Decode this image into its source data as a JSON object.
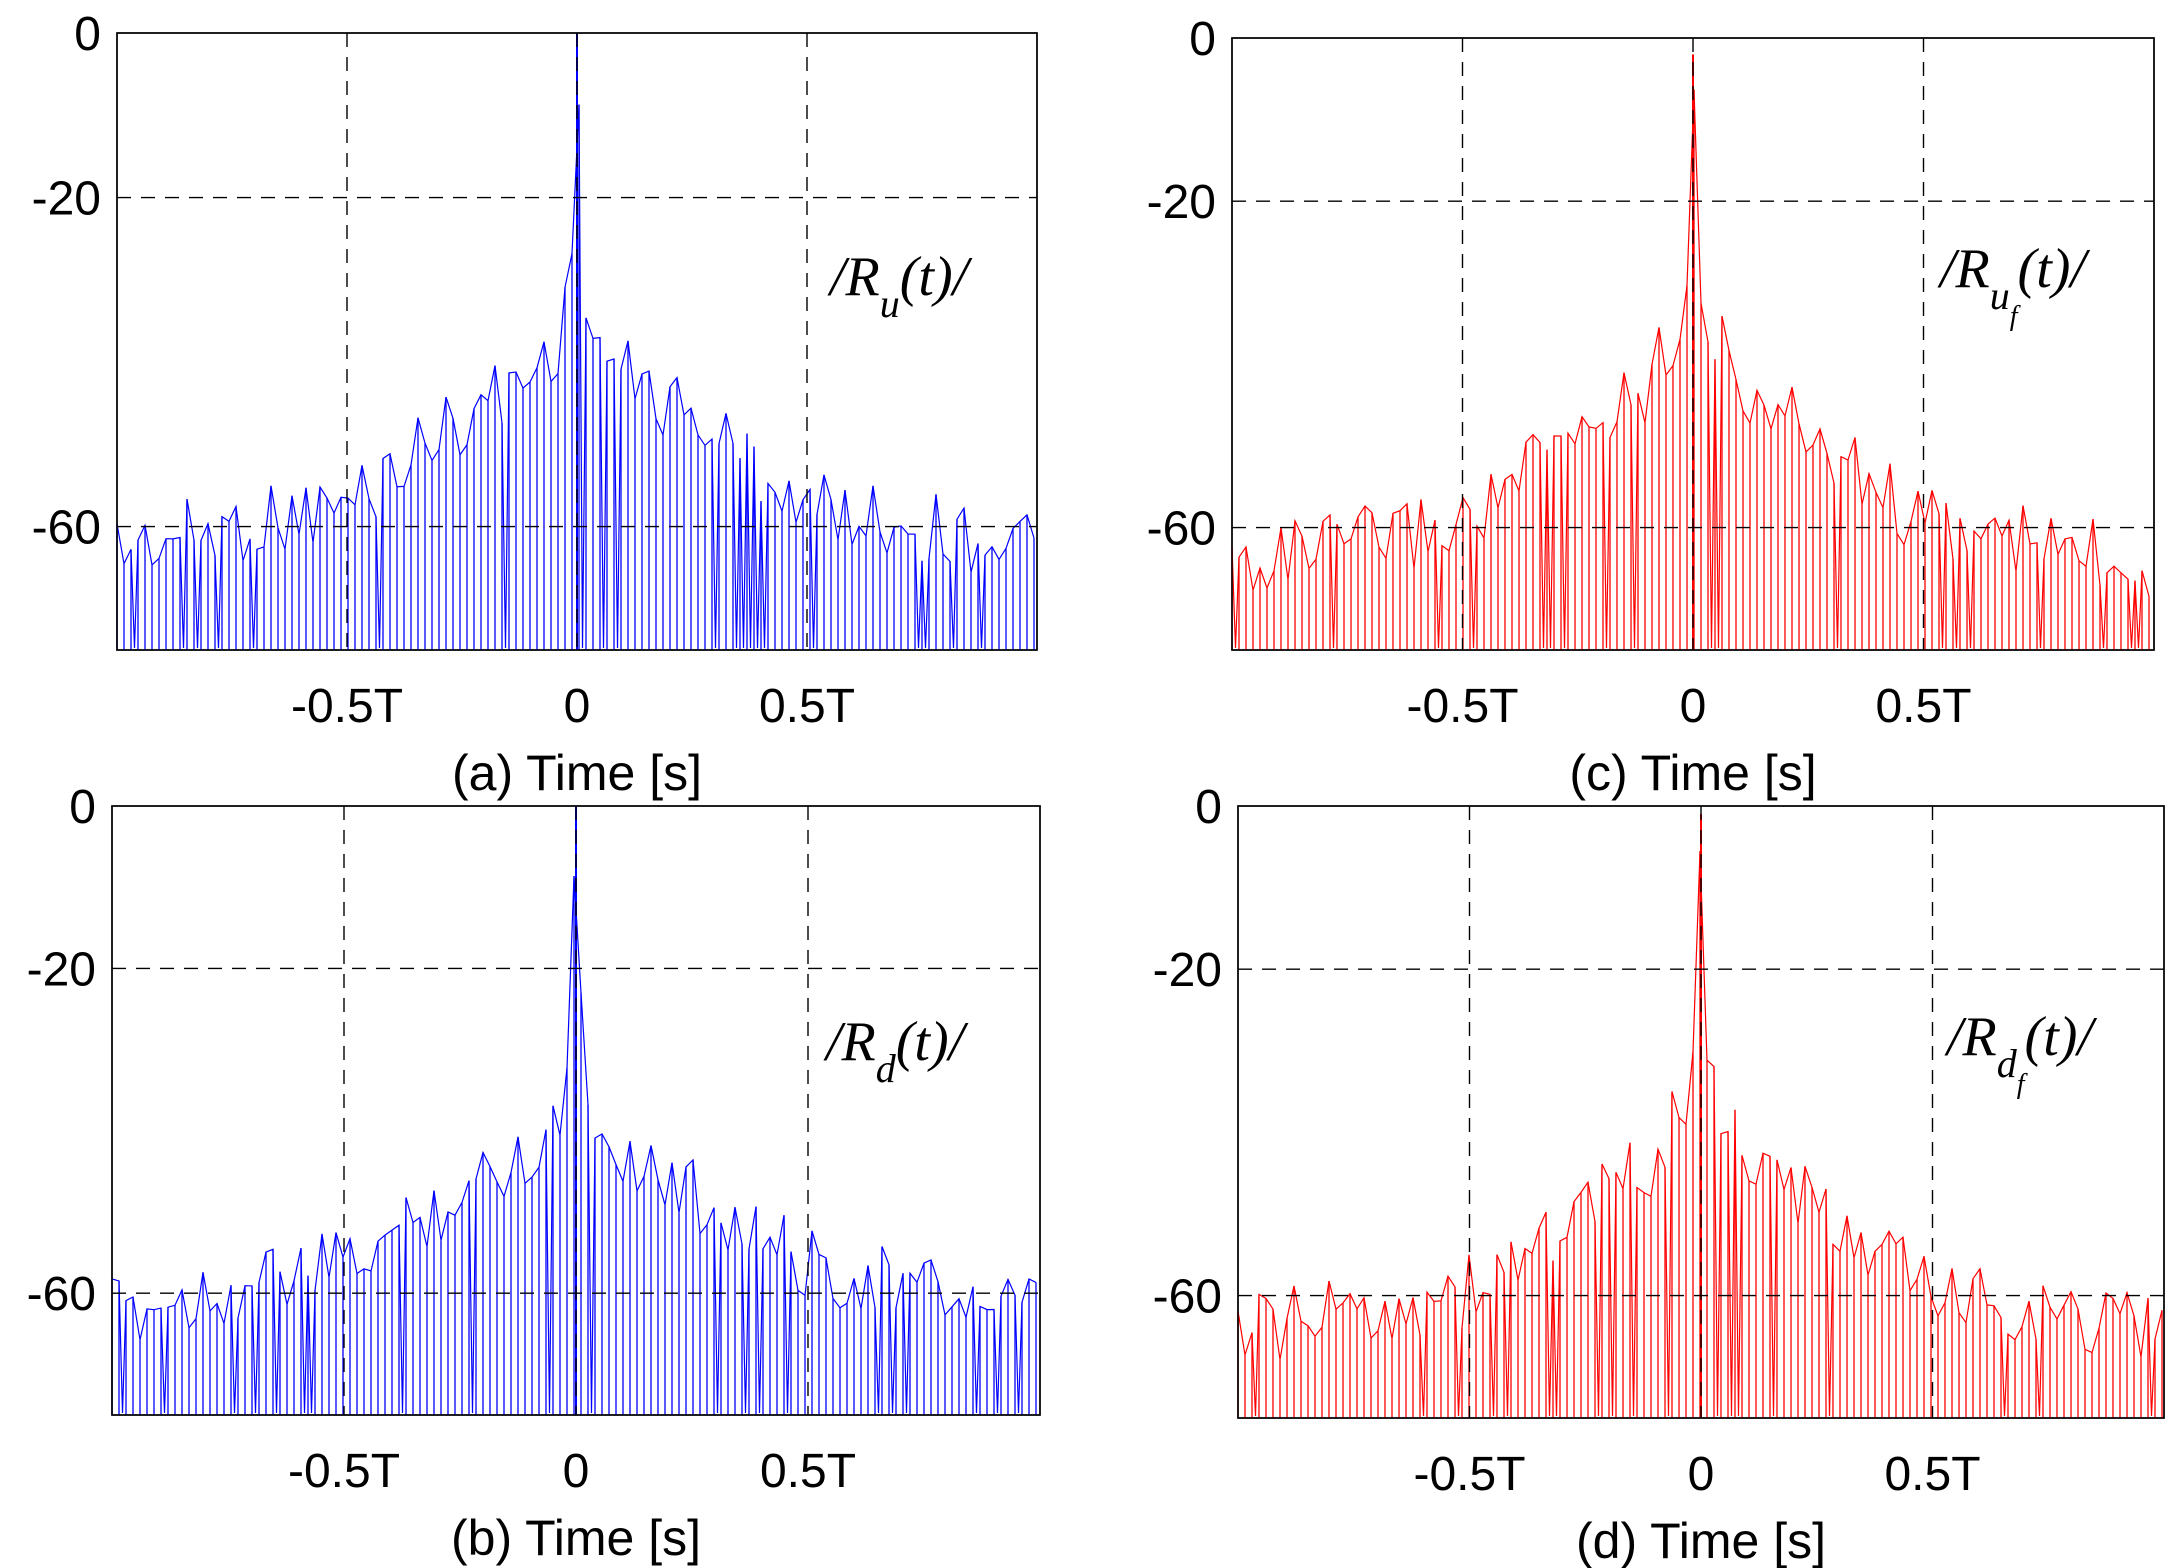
{
  "chart_data": [
    {
      "id": "a",
      "type": "line",
      "style": "stem",
      "xlabel": "(a) Time [s]",
      "ylabel": "",
      "xlim": [
        -1,
        1
      ],
      "ylim": [
        -75,
        0
      ],
      "xticks": [
        {
          "value": -0.5,
          "label": "-0.5T"
        },
        {
          "value": 0,
          "label": "0"
        },
        {
          "value": 0.5,
          "label": "0.5T"
        }
      ],
      "yticks": [
        {
          "value": 0,
          "label": "0"
        },
        {
          "value": -20,
          "label": "-20"
        },
        {
          "value": -60,
          "label": "-60"
        }
      ],
      "grid": true,
      "color": "#0000ff",
      "annotation": {
        "prefix": "/R",
        "sub": "u",
        "subsub": "",
        "suffix": "(t)/"
      },
      "series": [
        {
          "name": "|R_u(t)|",
          "envelope": [
            {
              "x": -1.0,
              "y": -58
            },
            {
              "x": -0.5,
              "y": -53
            },
            {
              "x": -0.3,
              "y": -44
            },
            {
              "x": -0.1,
              "y": -37
            },
            {
              "x": -0.03,
              "y": -32
            },
            {
              "x": -0.01,
              "y": -20
            },
            {
              "x": 0,
              "y": 0
            },
            {
              "x": 0.01,
              "y": -20
            },
            {
              "x": 0.03,
              "y": -32
            },
            {
              "x": 0.1,
              "y": -37
            },
            {
              "x": 0.3,
              "y": -44
            },
            {
              "x": 0.5,
              "y": -53
            },
            {
              "x": 1.0,
              "y": -58
            }
          ]
        }
      ]
    },
    {
      "id": "b",
      "type": "line",
      "style": "stem",
      "xlabel": "(b) Time [s]",
      "ylabel": "",
      "xlim": [
        -1,
        1
      ],
      "ylim": [
        -75,
        0
      ],
      "xticks": [
        {
          "value": -0.5,
          "label": "-0.5T"
        },
        {
          "value": 0,
          "label": "0"
        },
        {
          "value": 0.5,
          "label": "0.5T"
        }
      ],
      "yticks": [
        {
          "value": 0,
          "label": "0"
        },
        {
          "value": -20,
          "label": "-20"
        },
        {
          "value": -60,
          "label": "-60"
        }
      ],
      "grid": true,
      "color": "#0000ff",
      "annotation": {
        "prefix": "/R",
        "sub": "d",
        "subsub": "",
        "suffix": "(t)/"
      },
      "series": [
        {
          "name": "|R_d(t)|",
          "envelope": [
            {
              "x": -1.0,
              "y": -58
            },
            {
              "x": -0.5,
              "y": -52
            },
            {
              "x": -0.3,
              "y": -45
            },
            {
              "x": -0.1,
              "y": -38
            },
            {
              "x": -0.03,
              "y": -33
            },
            {
              "x": -0.01,
              "y": -20
            },
            {
              "x": 0,
              "y": 0
            },
            {
              "x": 0.01,
              "y": -20
            },
            {
              "x": 0.03,
              "y": -33
            },
            {
              "x": 0.1,
              "y": -38
            },
            {
              "x": 0.3,
              "y": -45
            },
            {
              "x": 0.5,
              "y": -52
            },
            {
              "x": 1.0,
              "y": -58
            }
          ]
        }
      ]
    },
    {
      "id": "c",
      "type": "line",
      "style": "stem",
      "xlabel": "(c) Time [s]",
      "ylabel": "",
      "xlim": [
        -1,
        1
      ],
      "ylim": [
        -75,
        0
      ],
      "xticks": [
        {
          "value": -0.5,
          "label": "-0.5T"
        },
        {
          "value": 0,
          "label": "0"
        },
        {
          "value": 0.5,
          "label": "0.5T"
        }
      ],
      "yticks": [
        {
          "value": 0,
          "label": "0"
        },
        {
          "value": -20,
          "label": "-20"
        },
        {
          "value": -60,
          "label": "-60"
        }
      ],
      "grid": true,
      "color": "#ff0000",
      "annotation": {
        "prefix": "/R",
        "sub": "u",
        "subsub": "f",
        "suffix": "(t)/"
      },
      "series": [
        {
          "name": "|R_uf(t)|",
          "envelope": [
            {
              "x": -1.0,
              "y": -60
            },
            {
              "x": -0.5,
              "y": -55
            },
            {
              "x": -0.3,
              "y": -46
            },
            {
              "x": -0.1,
              "y": -38
            },
            {
              "x": -0.03,
              "y": -30
            },
            {
              "x": -0.01,
              "y": -22
            },
            {
              "x": 0,
              "y": -2
            },
            {
              "x": 0.01,
              "y": -22
            },
            {
              "x": 0.03,
              "y": -30
            },
            {
              "x": 0.1,
              "y": -38
            },
            {
              "x": 0.3,
              "y": -46
            },
            {
              "x": 0.5,
              "y": -55
            },
            {
              "x": 1.0,
              "y": -60
            }
          ]
        }
      ]
    },
    {
      "id": "d",
      "type": "line",
      "style": "stem",
      "xlabel": "(d) Time [s]",
      "ylabel": "",
      "xlim": [
        -1,
        1
      ],
      "ylim": [
        -75,
        0
      ],
      "xticks": [
        {
          "value": -0.5,
          "label": "-0.5T"
        },
        {
          "value": 0,
          "label": "0"
        },
        {
          "value": 0.5,
          "label": "0.5T"
        }
      ],
      "yticks": [
        {
          "value": 0,
          "label": "0"
        },
        {
          "value": -20,
          "label": "-20"
        },
        {
          "value": -60,
          "label": "-60"
        }
      ],
      "grid": true,
      "color": "#ff0000",
      "annotation": {
        "prefix": "/R",
        "sub": "d",
        "subsub": "f",
        "suffix": "(t)/"
      },
      "series": [
        {
          "name": "|R_df(t)|",
          "envelope": [
            {
              "x": -1.0,
              "y": -60
            },
            {
              "x": -0.5,
              "y": -55
            },
            {
              "x": -0.3,
              "y": -47
            },
            {
              "x": -0.1,
              "y": -39
            },
            {
              "x": -0.03,
              "y": -31
            },
            {
              "x": -0.01,
              "y": -22
            },
            {
              "x": 0,
              "y": -1
            },
            {
              "x": 0.01,
              "y": -22
            },
            {
              "x": 0.03,
              "y": -31
            },
            {
              "x": 0.1,
              "y": -39
            },
            {
              "x": 0.3,
              "y": -47
            },
            {
              "x": 0.5,
              "y": -55
            },
            {
              "x": 1.0,
              "y": -60
            }
          ]
        }
      ]
    }
  ]
}
